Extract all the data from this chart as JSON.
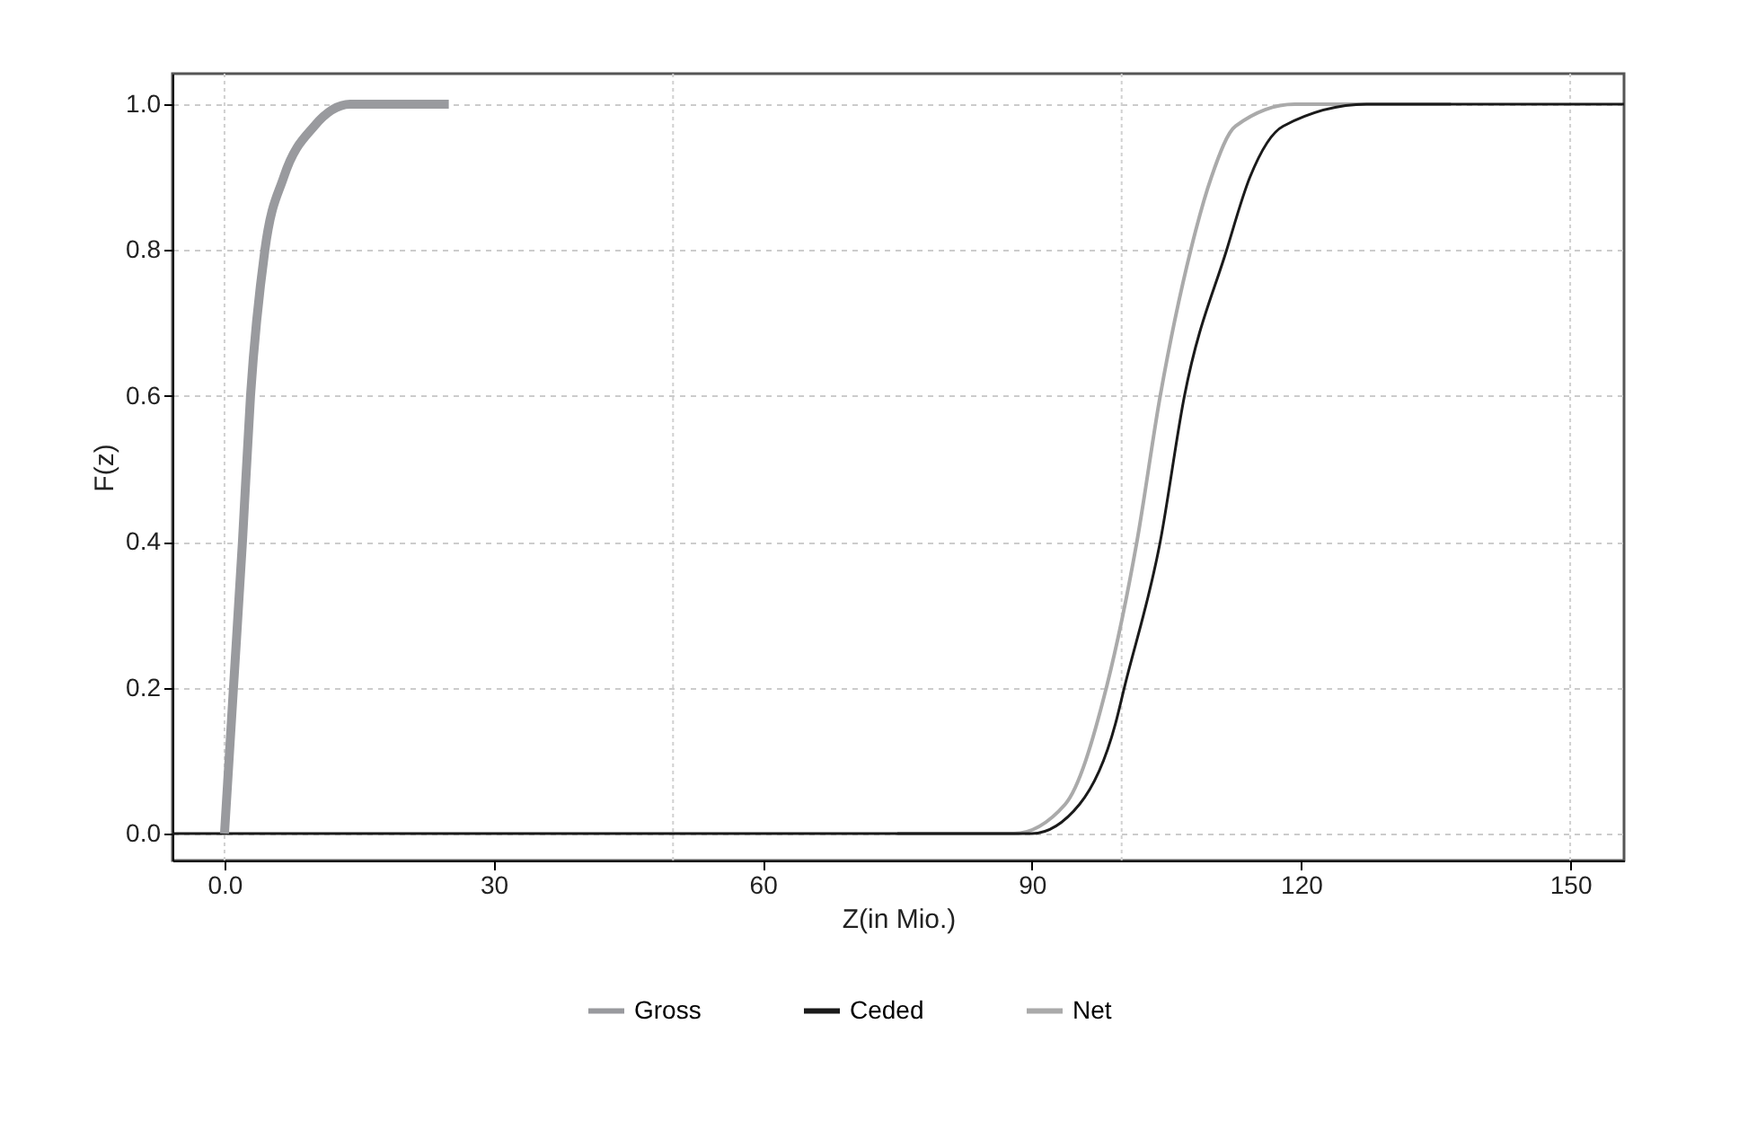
{
  "chart_data": {
    "type": "line",
    "xlabel": "Z(in Mio.)",
    "ylabel": "F(z)",
    "xlim": [
      -5.8,
      156
    ],
    "ylim": [
      -0.037,
      1.042
    ],
    "xticks": [
      {
        "value": 0,
        "label": "0.0"
      },
      30,
      60,
      90,
      120,
      150
    ],
    "yticks": [
      {
        "value": 0,
        "label": "0.0"
      },
      0.2,
      0.4,
      0.6,
      0.8,
      {
        "value": 1,
        "label": "1.0"
      }
    ],
    "grid": "y",
    "legend": "bottom",
    "line_style": "solid",
    "marker": "none",
    "ref_lines": [
      {
        "axis": "x",
        "value": 0,
        "line_style": "dotted",
        "color": "#d0d0d0"
      },
      {
        "axis": "x",
        "value": 50,
        "line_style": "dotted",
        "color": "#d0d0d0"
      },
      {
        "axis": "x",
        "value": 100,
        "line_style": "dotted",
        "color": "#d0d0d0"
      },
      {
        "axis": "x",
        "value": 150,
        "line_style": "dotted",
        "color": "#d0d0d0"
      }
    ],
    "series": [
      {
        "name": "Gross",
        "color": "#999a9e",
        "x": [
          0,
          1,
          2,
          2.9,
          4.5,
          6.6,
          10,
          14,
          25
        ],
        "values": [
          0,
          0.2,
          0.4,
          0.6,
          0.8,
          0.9,
          0.97,
          1.0,
          1.0
        ]
      },
      {
        "name": "Ceded",
        "color": "#1a1a1a",
        "x": [
          -5.8,
          75,
          90,
          95.3,
          99.3,
          100.3,
          104.3,
          107,
          111.7,
          114.3,
          118,
          127.3,
          156
        ],
        "values": [
          0,
          0,
          0,
          0.04,
          0.15,
          0.2,
          0.4,
          0.6,
          0.8,
          0.9,
          0.97,
          1.0,
          1.0
        ]
      },
      {
        "name": "Net",
        "color": "#aaaaaa",
        "x": [
          75,
          88,
          93.7,
          98.3,
          101.7,
          104.3,
          107.7,
          110,
          112.7,
          119.3,
          136.7
        ],
        "values": [
          0,
          0,
          0.04,
          0.2,
          0.4,
          0.6,
          0.8,
          0.9,
          0.97,
          1.0,
          1.0
        ]
      }
    ]
  }
}
